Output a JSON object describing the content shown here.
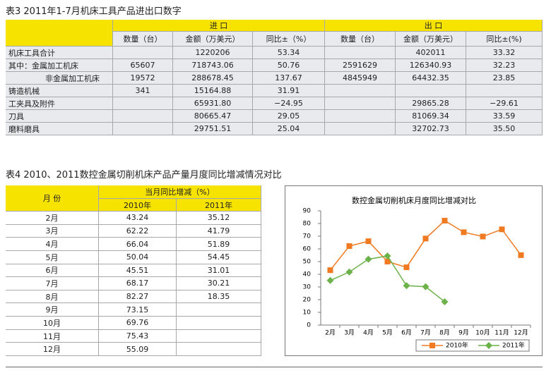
{
  "table3": {
    "title": "表3  2011年1-7月机床工具产品进出口数字",
    "groups": [
      "进  口",
      "出  口"
    ],
    "columns": [
      "数量（台）",
      "金额（万美元）",
      "同比±（%）",
      "数量（台）",
      "金额（万美元）",
      "同比±(%)"
    ],
    "rows": [
      [
        "机床工具合计",
        null,
        "1220206",
        "53.34",
        null,
        "402011",
        "33.32"
      ],
      [
        "其中：金属加工机床",
        "65607",
        "718743.06",
        "50.76",
        "2591629",
        "126340.93",
        "32.23"
      ],
      [
        "非金属加工机床",
        "19572",
        "288678.45",
        "137.67",
        "4845949",
        "64432.35",
        "23.85"
      ],
      [
        "铸造机械",
        "341",
        "15164.88",
        "31.91",
        null,
        null,
        null
      ],
      [
        "工夹具及附件",
        null,
        "65931.80",
        "−24.95",
        null,
        "29865.28",
        "−29.61"
      ],
      [
        "刀具",
        null,
        "80665.47",
        "29.05",
        null,
        "81069.34",
        "33.59"
      ],
      [
        "磨料磨具",
        null,
        "29751.51",
        "25.04",
        null,
        "32702.73",
        "35.50"
      ]
    ]
  },
  "table4": {
    "title": "表4  2010、2011数控金属切削机床产品产量月度同比增减情况对比",
    "month_header": "月  份",
    "group": "当月同比增减（%）",
    "columns": [
      "2010年",
      "2011年"
    ],
    "rows": [
      [
        "2月",
        "43.24",
        "35.12"
      ],
      [
        "3月",
        "62.22",
        "41.79"
      ],
      [
        "4月",
        "66.04",
        "51.89"
      ],
      [
        "5月",
        "50.04",
        "54.45"
      ],
      [
        "6月",
        "45.51",
        "31.01"
      ],
      [
        "7月",
        "68.17",
        "30.21"
      ],
      [
        "8月",
        "82.27",
        "18.35"
      ],
      [
        "9月",
        "73.15",
        null
      ],
      [
        "10月",
        "69.76",
        null
      ],
      [
        "11月",
        "75.43",
        null
      ],
      [
        "12月",
        "55.09",
        null
      ]
    ]
  },
  "chart_data": {
    "type": "line",
    "title": "数控金属切削机床月度同比增减对比",
    "categories": [
      "2月",
      "3月",
      "4月",
      "5月",
      "6月",
      "7月",
      "8月",
      "9月",
      "10月",
      "11月",
      "12月"
    ],
    "series": [
      {
        "name": "2010年",
        "color": "#f07a22",
        "marker": "square",
        "values": [
          43.24,
          62.22,
          66.04,
          50.04,
          45.51,
          68.17,
          82.27,
          73.15,
          69.76,
          75.43,
          55.09
        ]
      },
      {
        "name": "2011年",
        "color": "#6cb24a",
        "marker": "diamond",
        "values": [
          35.12,
          41.79,
          51.89,
          54.45,
          31.01,
          30.21,
          18.35,
          null,
          null,
          null,
          null
        ]
      }
    ],
    "ylim": [
      0,
      90
    ],
    "yticks": [
      0,
      10,
      20,
      30,
      40,
      50,
      60,
      70,
      80,
      90
    ],
    "legend": "bottom-right"
  }
}
